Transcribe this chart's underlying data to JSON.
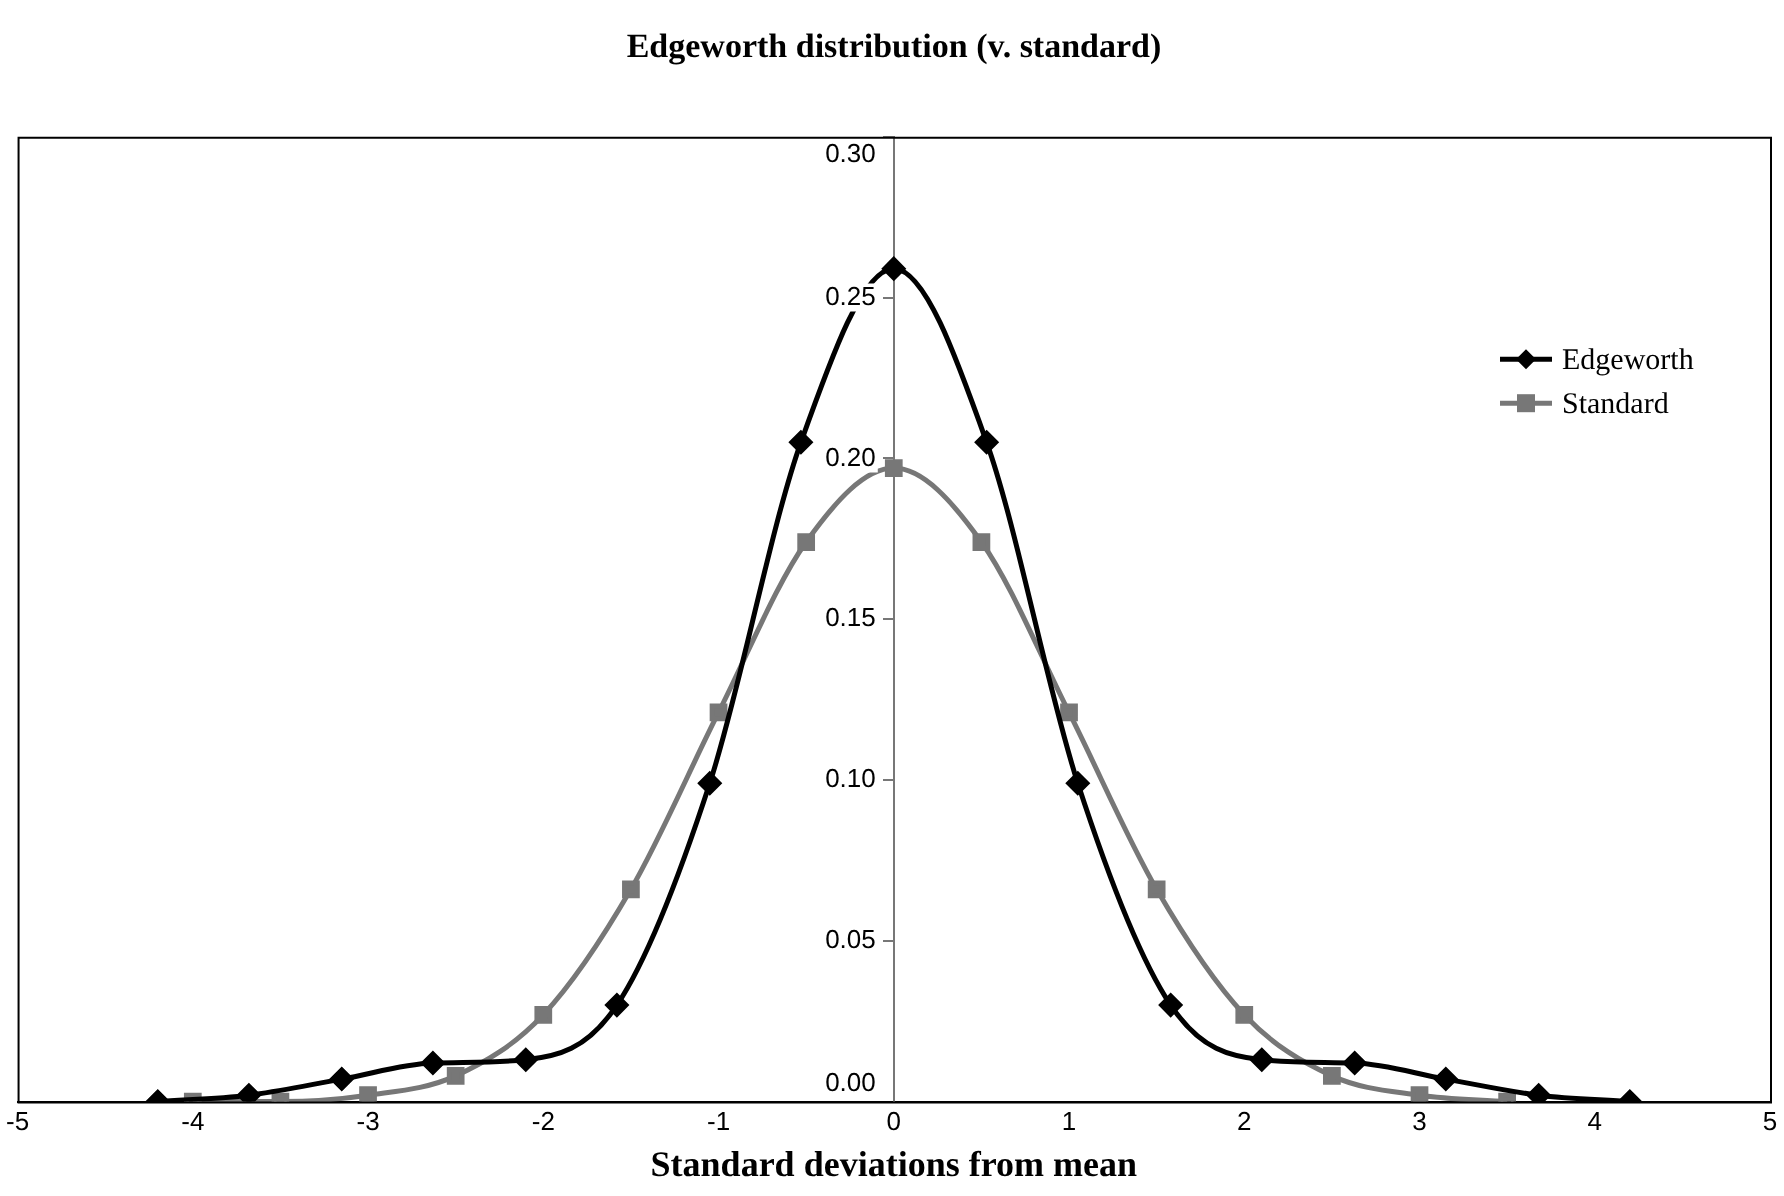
{
  "chart_data": {
    "type": "line",
    "title": "Edgeworth distribution (v. standard)",
    "xlabel": "Standard deviations from mean",
    "series": [
      {
        "name": "Edgeworth",
        "color": "#000000",
        "marker": "diamond",
        "x": [
          -4.2,
          -3.68,
          -3.15,
          -2.63,
          -2.1,
          -1.58,
          -1.05,
          -0.53,
          0,
          0.53,
          1.05,
          1.58,
          2.1,
          2.63,
          3.15,
          3.68,
          4.2
        ],
        "values": [
          0.0,
          0.002,
          0.007,
          0.012,
          0.013,
          0.03,
          0.099,
          0.205,
          0.259,
          0.205,
          0.099,
          0.03,
          0.013,
          0.012,
          0.007,
          0.002,
          0.0
        ]
      },
      {
        "name": "Standard",
        "color": "#777777",
        "marker": "square",
        "x": [
          -4,
          -3.5,
          -3,
          -2.5,
          -2,
          -1.5,
          -1,
          -0.5,
          0,
          0.5,
          1,
          1.5,
          2,
          2.5,
          3,
          3.5
        ],
        "values": [
          0.0,
          0.0,
          0.002,
          0.008,
          0.027,
          0.066,
          0.121,
          0.174,
          0.197,
          0.174,
          0.121,
          0.066,
          0.027,
          0.008,
          0.002,
          0.0
        ]
      }
    ],
    "xlim": [
      -5,
      5
    ],
    "xticks": [
      -5,
      -4,
      -3,
      -2,
      -1,
      0,
      1,
      2,
      3,
      4,
      5
    ],
    "ylim": [
      0,
      0.3
    ],
    "yticks": [
      {
        "value": 0,
        "label": "0.00"
      },
      {
        "value": 0.05,
        "label": "0.05"
      },
      {
        "value": 0.1,
        "label": "0.10"
      },
      {
        "value": 0.15,
        "label": "0.15"
      },
      {
        "value": 0.2,
        "label": "0.20"
      },
      {
        "value": 0.25,
        "label": "0.25"
      },
      {
        "value": 0.3,
        "label": "0.30"
      }
    ],
    "grid": false,
    "legend": "right"
  }
}
